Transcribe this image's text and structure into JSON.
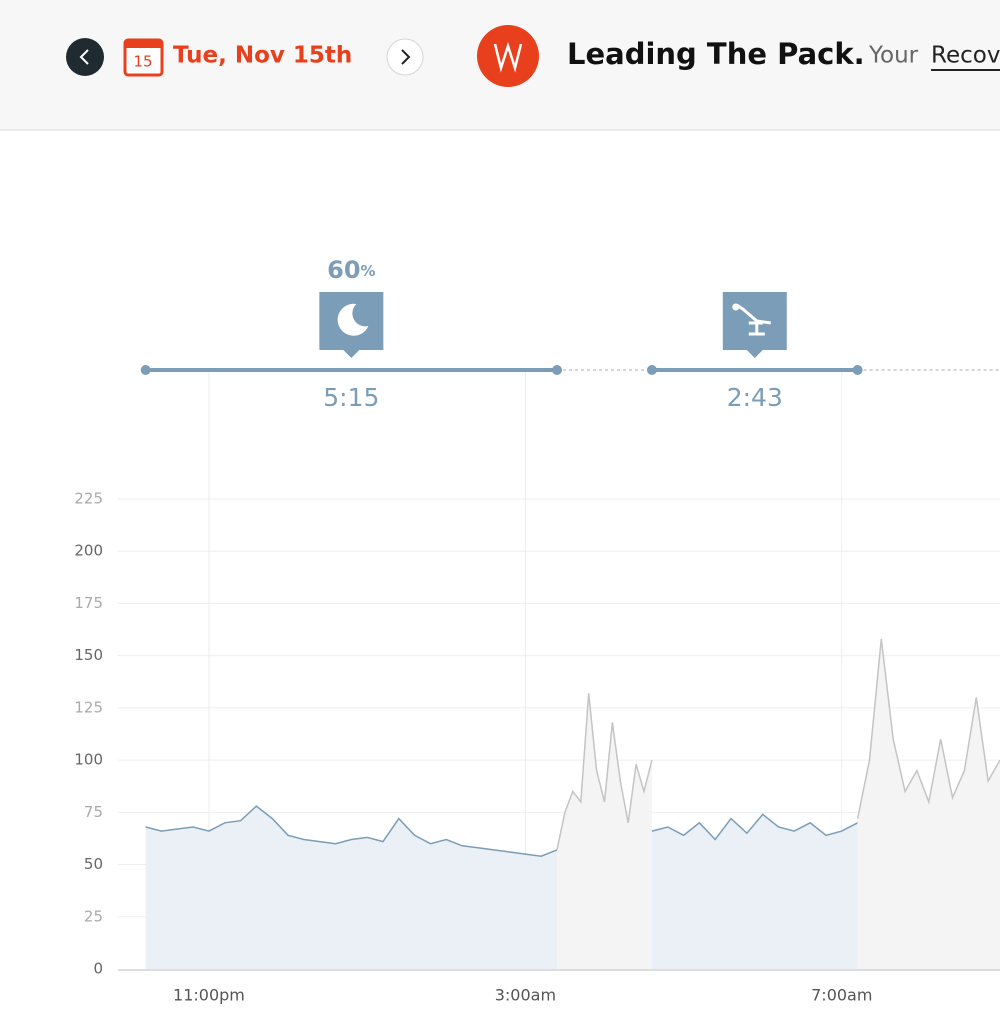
{
  "header": {
    "calendar_day": "15",
    "date": "Tue, Nov 15th",
    "title": "Leading The Pack.",
    "subtitle_prefix": "Your",
    "subtitle_link": "Recov"
  },
  "timeline": [
    {
      "score": "60",
      "score_unit": "%",
      "duration": "5:15"
    },
    {
      "duration": "2:43"
    }
  ],
  "chart_data": {
    "type": "line",
    "xlim": [
      21.85,
      33.0
    ],
    "xticks": [
      {
        "value": 23,
        "label": "11:00pm"
      },
      {
        "value": 27,
        "label": "3:00am"
      },
      {
        "value": 31,
        "label": "7:00am"
      }
    ],
    "ylim": [
      0,
      225
    ],
    "yticks": [
      0,
      25,
      50,
      75,
      100,
      125,
      150,
      175,
      200,
      225
    ],
    "grid": true,
    "series": [
      {
        "color": "#7b9db8",
        "fill": "#eaf0f5",
        "x": [
          22.2,
          22.4,
          22.6,
          22.8,
          23.0,
          23.2,
          23.4,
          23.6,
          23.8,
          24.0,
          24.2,
          24.4,
          24.6,
          24.8,
          25.0,
          25.2,
          25.4,
          25.6,
          25.8,
          26.0,
          26.2,
          26.4,
          26.6,
          26.8,
          27.0,
          27.2,
          27.4
        ],
        "values": [
          68,
          66,
          67,
          68,
          66,
          70,
          71,
          78,
          72,
          64,
          62,
          61,
          60,
          62,
          63,
          61,
          72,
          64,
          60,
          62,
          59,
          58,
          57,
          56,
          55,
          54,
          57
        ]
      },
      {
        "color": "#c4c4c4",
        "fill": "#f4f4f4",
        "x": [
          27.4,
          27.5,
          27.6,
          27.7,
          27.8,
          27.9,
          28.0,
          28.1,
          28.2,
          28.3,
          28.4,
          28.5,
          28.6
        ],
        "values": [
          57,
          75,
          85,
          80,
          132,
          95,
          80,
          118,
          90,
          70,
          98,
          85,
          100
        ]
      },
      {
        "color": "#7b9db8",
        "fill": "#eaf0f5",
        "x": [
          28.6,
          28.8,
          29.0,
          29.2,
          29.4,
          29.6,
          29.8,
          30.0,
          30.2,
          30.4,
          30.6,
          30.8,
          31.0,
          31.2
        ],
        "values": [
          66,
          68,
          64,
          70,
          62,
          72,
          65,
          74,
          68,
          66,
          70,
          64,
          66,
          70
        ]
      },
      {
        "color": "#c4c4c4",
        "fill": "#f4f4f4",
        "x": [
          31.2,
          31.35,
          31.5,
          31.65,
          31.8,
          31.95,
          32.1,
          32.25,
          32.4,
          32.55,
          32.7,
          32.85,
          33.0
        ],
        "values": [
          72,
          100,
          158,
          110,
          85,
          95,
          80,
          110,
          82,
          95,
          130,
          90,
          100
        ]
      }
    ]
  }
}
